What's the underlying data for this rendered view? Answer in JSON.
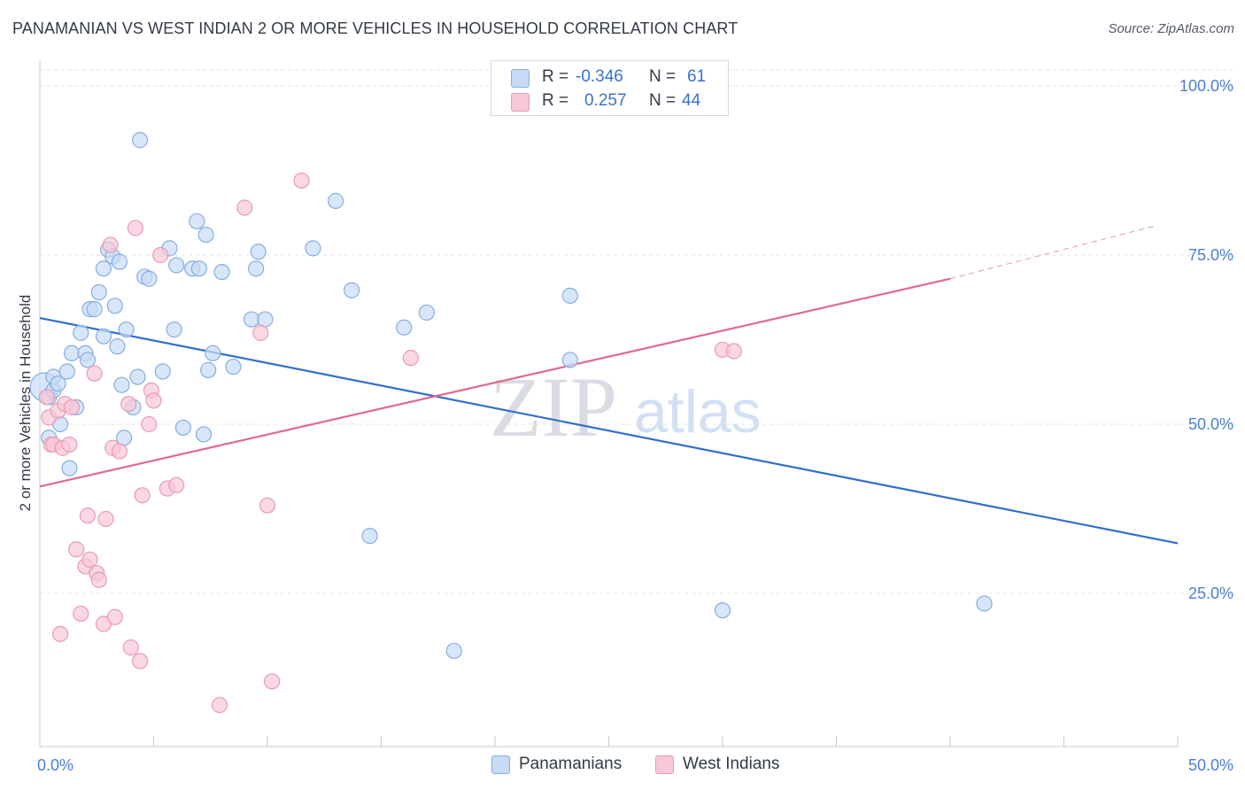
{
  "title": "PANAMANIAN VS WEST INDIAN 2 OR MORE VEHICLES IN HOUSEHOLD CORRELATION CHART",
  "source": "Source: ZipAtlas.com",
  "watermark": {
    "zip": "ZIP",
    "atlas": "atlas"
  },
  "colors": {
    "blue_fill": "#c7dbf7",
    "blue_stroke": "#86aee0",
    "blue_line": "#2f6fcf",
    "pink_fill": "#f8c8d6",
    "pink_stroke": "#e99bb3",
    "pink_line": "#e0688f",
    "grid": "#e3e3e3",
    "tick_text": "#4a7fd4"
  },
  "legend": {
    "rows": [
      {
        "r_label": "R =",
        "r_value": "-0.346",
        "n_label": "N =",
        "n_value": "61",
        "color": "#c7dbf7",
        "stroke": "#86aee0"
      },
      {
        "r_label": "R =",
        "r_value": "0.257",
        "n_label": "N =",
        "n_value": "44",
        "color": "#f8c8d6",
        "stroke": "#e99bb3"
      }
    ]
  },
  "bottom_legend": [
    {
      "label": "Panamanians",
      "color": "#c7dbf7",
      "stroke": "#86aee0"
    },
    {
      "label": "West Indians",
      "color": "#f8c8d6",
      "stroke": "#e99bb3"
    }
  ],
  "chart_data": {
    "type": "scatter",
    "title": "PANAMANIAN VS WEST INDIAN 2 OR MORE VEHICLES IN HOUSEHOLD CORRELATION CHART",
    "xlabel": "",
    "ylabel": "2 or more Vehicles in Household",
    "xlim": [
      0,
      50
    ],
    "ylim": [
      0,
      105
    ],
    "x_tick_labels": [
      {
        "value": 0,
        "label": "0.0%"
      },
      {
        "value": 50,
        "label": "50.0%"
      }
    ],
    "y_tick_labels": [
      {
        "value": 25,
        "label": "25.0%"
      },
      {
        "value": 50,
        "label": "50.0%"
      },
      {
        "value": 75,
        "label": "75.0%"
      },
      {
        "value": 100,
        "label": "100.0%"
      }
    ],
    "y_gridlines": [
      25,
      50,
      75,
      100
    ],
    "x_minor_ticks": [
      0,
      5,
      10,
      15,
      20,
      25,
      30,
      35,
      40,
      45,
      50
    ],
    "series": [
      {
        "name": "Panamanians",
        "color": "#c7dbf7",
        "points": [
          [
            0.2,
            55.5
          ],
          [
            0.4,
            48
          ],
          [
            0.4,
            54
          ],
          [
            0.6,
            55
          ],
          [
            0.6,
            57
          ],
          [
            0.8,
            56
          ],
          [
            0.9,
            50
          ],
          [
            1.2,
            57.8
          ],
          [
            1.3,
            43.5
          ],
          [
            1.4,
            60.5
          ],
          [
            1.6,
            52.5
          ],
          [
            1.8,
            63.5
          ],
          [
            2.0,
            60.5
          ],
          [
            2.1,
            59.5
          ],
          [
            2.2,
            67
          ],
          [
            2.4,
            67
          ],
          [
            2.6,
            69.5
          ],
          [
            2.8,
            63
          ],
          [
            2.8,
            73
          ],
          [
            3.0,
            75.8
          ],
          [
            3.2,
            74.8
          ],
          [
            3.3,
            67.5
          ],
          [
            3.4,
            61.5
          ],
          [
            3.5,
            74
          ],
          [
            3.6,
            55.8
          ],
          [
            3.7,
            48
          ],
          [
            3.8,
            64
          ],
          [
            4.1,
            52.5
          ],
          [
            4.3,
            57
          ],
          [
            4.4,
            92
          ],
          [
            4.6,
            71.8
          ],
          [
            4.8,
            71.5
          ],
          [
            5.4,
            57.8
          ],
          [
            5.7,
            76
          ],
          [
            5.9,
            64
          ],
          [
            6.0,
            73.5
          ],
          [
            6.3,
            49.5
          ],
          [
            6.7,
            73
          ],
          [
            6.9,
            80
          ],
          [
            7.0,
            73
          ],
          [
            7.2,
            48.5
          ],
          [
            7.3,
            78
          ],
          [
            7.4,
            58
          ],
          [
            7.6,
            60.5
          ],
          [
            8.0,
            72.5
          ],
          [
            8.5,
            58.5
          ],
          [
            9.3,
            65.5
          ],
          [
            9.5,
            73
          ],
          [
            9.6,
            75.5
          ],
          [
            9.9,
            65.5
          ],
          [
            12.0,
            76
          ],
          [
            13.0,
            83
          ],
          [
            13.7,
            69.8
          ],
          [
            14.5,
            33.5
          ],
          [
            16.0,
            64.3
          ],
          [
            17.0,
            66.5
          ],
          [
            18.2,
            16.5
          ],
          [
            23.3,
            69
          ],
          [
            23.3,
            59.5
          ],
          [
            30.0,
            22.5
          ],
          [
            41.5,
            23.5
          ]
        ]
      },
      {
        "name": "West Indians",
        "color": "#f8c8d6",
        "points": [
          [
            0.3,
            54
          ],
          [
            0.4,
            51
          ],
          [
            0.5,
            47
          ],
          [
            0.6,
            47
          ],
          [
            0.8,
            52
          ],
          [
            0.9,
            19
          ],
          [
            1.0,
            46.5
          ],
          [
            1.1,
            53
          ],
          [
            1.3,
            47
          ],
          [
            1.4,
            52.5
          ],
          [
            1.6,
            31.5
          ],
          [
            1.8,
            22
          ],
          [
            2.0,
            29
          ],
          [
            2.1,
            36.5
          ],
          [
            2.2,
            30
          ],
          [
            2.4,
            57.5
          ],
          [
            2.5,
            28
          ],
          [
            2.6,
            27
          ],
          [
            2.8,
            20.5
          ],
          [
            2.9,
            36
          ],
          [
            3.1,
            76.5
          ],
          [
            3.2,
            46.5
          ],
          [
            3.3,
            21.5
          ],
          [
            3.5,
            46
          ],
          [
            3.9,
            53
          ],
          [
            4.0,
            17
          ],
          [
            4.2,
            79
          ],
          [
            4.4,
            15
          ],
          [
            4.5,
            39.5
          ],
          [
            4.8,
            50
          ],
          [
            4.9,
            55
          ],
          [
            5.0,
            53.5
          ],
          [
            5.3,
            75
          ],
          [
            5.6,
            40.5
          ],
          [
            6.0,
            41
          ],
          [
            7.9,
            8.5
          ],
          [
            9.0,
            82
          ],
          [
            9.7,
            63.5
          ],
          [
            10.0,
            38
          ],
          [
            10.2,
            12
          ],
          [
            11.5,
            86
          ],
          [
            16.3,
            59.8
          ],
          [
            30.0,
            61
          ],
          [
            30.5,
            60.8
          ]
        ]
      }
    ],
    "trend_lines": [
      {
        "name": "Panamanians",
        "x": [
          0,
          50
        ],
        "y": [
          65.7,
          32.4
        ],
        "dashed_extension": false
      },
      {
        "name": "West Indians",
        "x": [
          0,
          40
        ],
        "y": [
          40.8,
          71.5
        ],
        "extension_x": [
          40,
          49
        ],
        "extension_y": [
          71.5,
          79.3
        ]
      }
    ]
  }
}
